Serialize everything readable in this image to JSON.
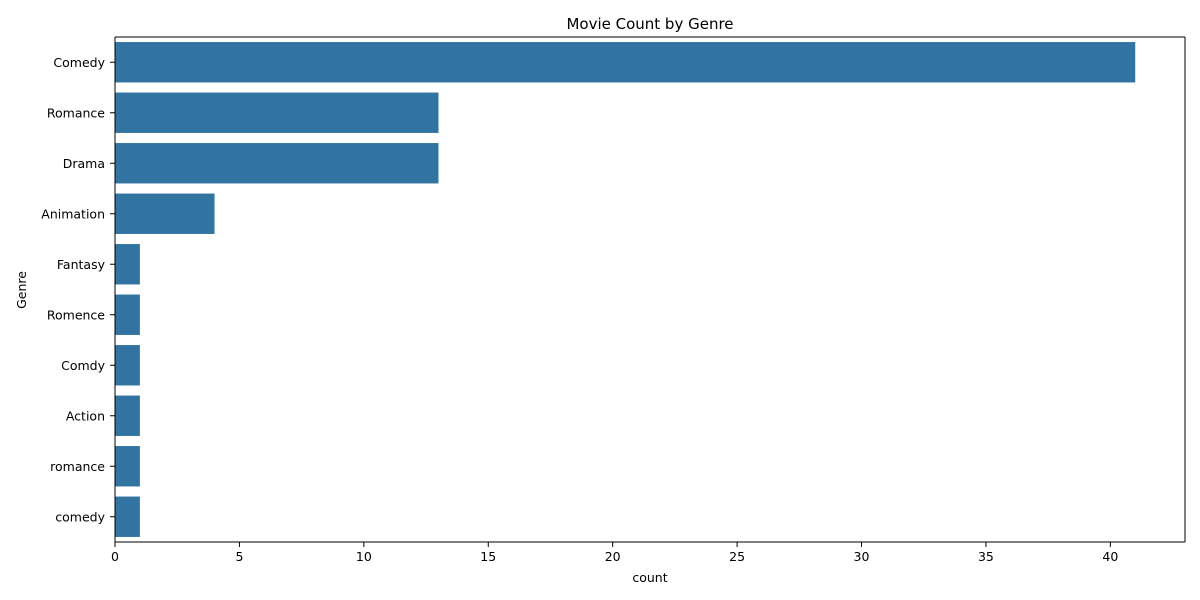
{
  "chart_data": {
    "type": "bar",
    "orientation": "horizontal",
    "title": "Movie Count by Genre",
    "xlabel": "count",
    "ylabel": "Genre",
    "categories": [
      "Comedy",
      "Romance",
      "Drama",
      "Animation",
      "Fantasy",
      "Romence",
      "Comdy",
      "Action",
      "romance",
      "comedy"
    ],
    "values": [
      41,
      13,
      13,
      4,
      1,
      1,
      1,
      1,
      1,
      1
    ],
    "xlim": [
      0,
      43
    ],
    "xticks": [
      0,
      5,
      10,
      15,
      20,
      25,
      30,
      35,
      40
    ],
    "grid": false,
    "legend": "none",
    "colors": {
      "bar": "#3274a1",
      "axis": "#000000",
      "background": "#ffffff"
    }
  }
}
